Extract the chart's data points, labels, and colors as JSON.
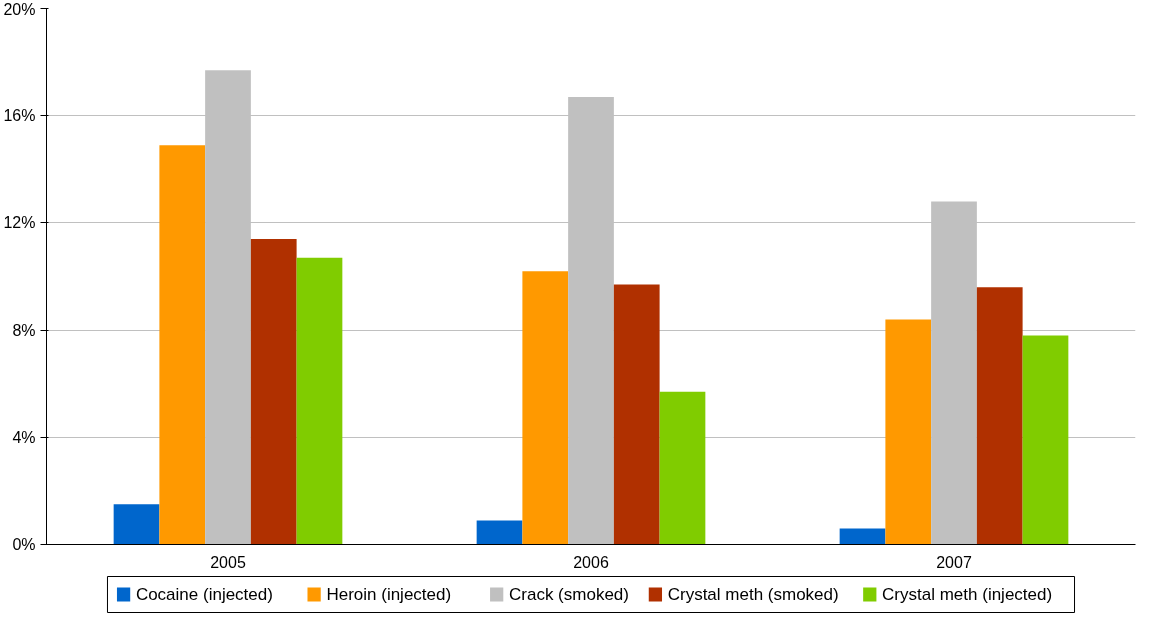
{
  "chart_data": {
    "type": "bar",
    "categories": [
      "2005",
      "2006",
      "2007"
    ],
    "series": [
      {
        "name": "Cocaine (injected)",
        "color": "#0066cc",
        "values": [
          1.5,
          0.9,
          0.6
        ]
      },
      {
        "name": "Heroin (injected)",
        "color": "#ff9900",
        "values": [
          14.9,
          10.2,
          8.4
        ]
      },
      {
        "name": "Crack (smoked)",
        "color": "#c0c0c0",
        "values": [
          17.7,
          16.7,
          12.8
        ]
      },
      {
        "name": "Crystal meth (smoked)",
        "color": "#b03000",
        "values": [
          11.4,
          9.7,
          9.6
        ]
      },
      {
        "name": "Crystal meth (injected)",
        "color": "#80cc00",
        "values": [
          10.7,
          5.7,
          7.8
        ]
      }
    ],
    "ylim": [
      0,
      20
    ],
    "yticks": [
      {
        "value": 0,
        "label": "0%"
      },
      {
        "value": 4,
        "label": "4%"
      },
      {
        "value": 8,
        "label": "8%"
      },
      {
        "value": 12,
        "label": "12%"
      },
      {
        "value": 16,
        "label": "16%"
      },
      {
        "value": 20,
        "label": "20%"
      }
    ],
    "grid": "y",
    "legend": "bottom"
  }
}
